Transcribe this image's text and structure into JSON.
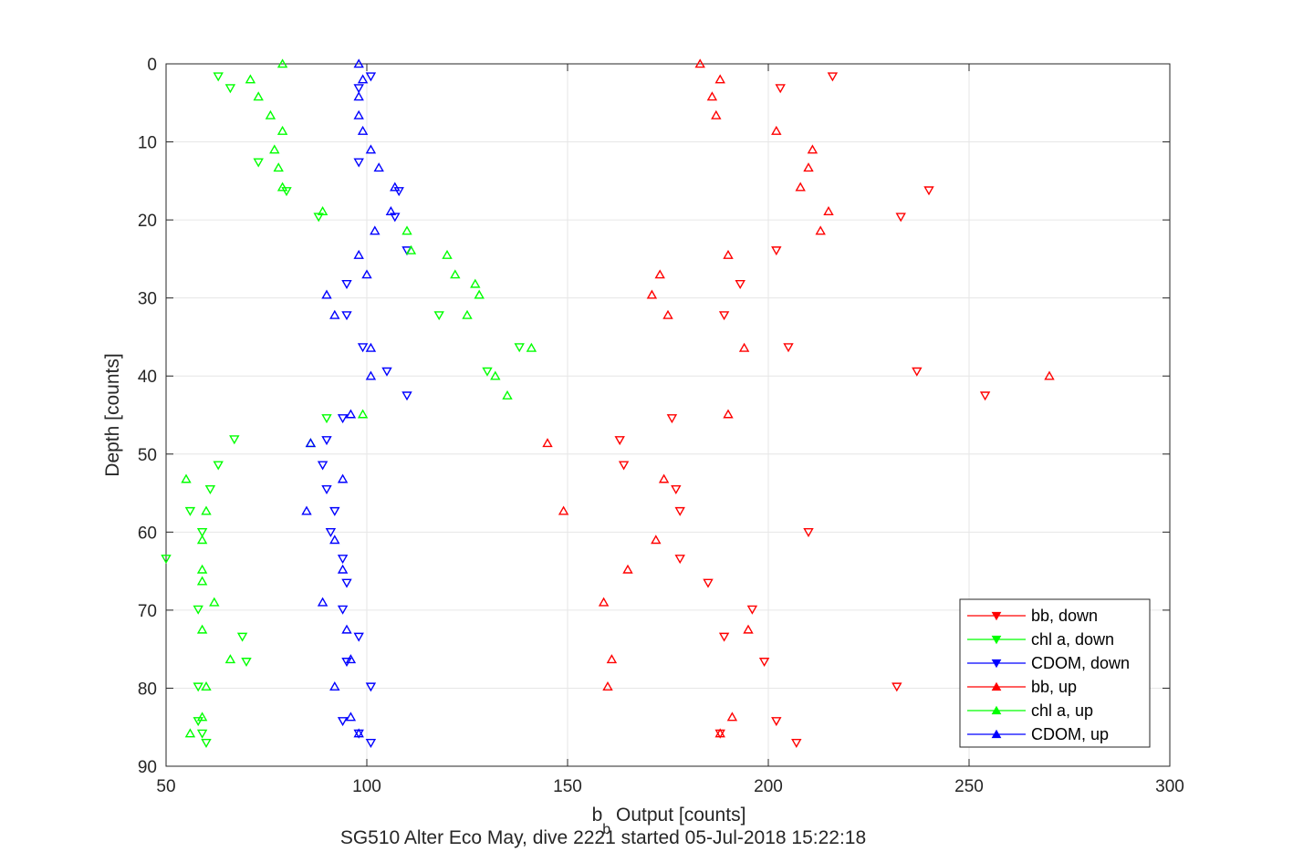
{
  "chart_data": {
    "type": "scatter",
    "xlabel_main": "b",
    "xlabel_sub": "b",
    "xlabel_rest": " Output [counts]",
    "ylabel": "Depth [counts]",
    "caption": "SG510 Alter Eco May, dive 2221 started 05-Jul-2018 15:22:18",
    "xlim": [
      50,
      300
    ],
    "ylim": [
      0,
      90
    ],
    "y_reversed": true,
    "grid": true,
    "x_ticks": [
      "50",
      "100",
      "150",
      "200",
      "250",
      "300"
    ],
    "y_ticks": [
      "0",
      "10",
      "20",
      "30",
      "40",
      "50",
      "60",
      "70",
      "80",
      "90"
    ],
    "legend_position": "bottom-right",
    "series": [
      {
        "name": "bb, down",
        "color": "#ff0000",
        "marker": "triangle-down",
        "points": [
          [
            216,
            1.6
          ],
          [
            203,
            3.1
          ],
          [
            240,
            16.2
          ],
          [
            233,
            19.6
          ],
          [
            202,
            23.9
          ],
          [
            193,
            28.2
          ],
          [
            189,
            32.2
          ],
          [
            205,
            36.3
          ],
          [
            237,
            39.4
          ],
          [
            254,
            42.5
          ],
          [
            176,
            45.4
          ],
          [
            163,
            48.2
          ],
          [
            164,
            51.4
          ],
          [
            177,
            54.5
          ],
          [
            178,
            57.3
          ],
          [
            210,
            60
          ],
          [
            178,
            63.4
          ],
          [
            185,
            66.5
          ],
          [
            196,
            69.9
          ],
          [
            189,
            73.4
          ],
          [
            199,
            76.6
          ],
          [
            232,
            79.8
          ],
          [
            202,
            84.2
          ],
          [
            188,
            85.8
          ],
          [
            207,
            87
          ]
        ]
      },
      {
        "name": "chl a, down",
        "color": "#00ff00",
        "marker": "triangle-down",
        "points": [
          [
            63,
            1.6
          ],
          [
            66,
            3.1
          ],
          [
            73,
            12.6
          ],
          [
            80,
            16.3
          ],
          [
            88,
            19.6
          ],
          [
            118,
            32.2
          ],
          [
            138,
            36.3
          ],
          [
            130,
            39.4
          ],
          [
            90,
            45.4
          ],
          [
            67,
            48.1
          ],
          [
            63,
            51.4
          ],
          [
            61,
            54.5
          ],
          [
            56,
            57.3
          ],
          [
            59,
            60
          ],
          [
            50,
            63.4
          ],
          [
            58,
            69.9
          ],
          [
            69,
            73.4
          ],
          [
            70,
            76.6
          ],
          [
            58,
            79.8
          ],
          [
            58,
            84.2
          ],
          [
            59,
            85.8
          ],
          [
            60,
            87
          ]
        ]
      },
      {
        "name": "CDOM, down",
        "color": "#0000ff",
        "marker": "triangle-down",
        "points": [
          [
            101,
            1.6
          ],
          [
            98,
            3.1
          ],
          [
            98,
            12.6
          ],
          [
            108,
            16.3
          ],
          [
            107,
            19.6
          ],
          [
            110,
            23.9
          ],
          [
            95,
            28.2
          ],
          [
            95,
            32.2
          ],
          [
            99,
            36.3
          ],
          [
            105,
            39.4
          ],
          [
            110,
            42.5
          ],
          [
            94,
            45.4
          ],
          [
            90,
            48.2
          ],
          [
            89,
            51.4
          ],
          [
            90,
            54.5
          ],
          [
            92,
            57.3
          ],
          [
            91,
            60
          ],
          [
            94,
            63.4
          ],
          [
            95,
            66.5
          ],
          [
            94,
            69.9
          ],
          [
            98,
            73.4
          ],
          [
            95,
            76.6
          ],
          [
            101,
            79.8
          ],
          [
            94,
            84.2
          ],
          [
            98,
            85.8
          ],
          [
            101,
            87
          ]
        ]
      },
      {
        "name": "bb, up",
        "color": "#ff0000",
        "marker": "triangle-up",
        "points": [
          [
            183,
            0
          ],
          [
            188,
            2
          ],
          [
            186,
            4.2
          ],
          [
            187,
            6.6
          ],
          [
            202,
            8.6
          ],
          [
            211,
            11
          ],
          [
            210,
            13.3
          ],
          [
            208,
            15.8
          ],
          [
            215,
            18.9
          ],
          [
            213,
            21.4
          ],
          [
            190,
            24.5
          ],
          [
            173,
            27
          ],
          [
            171,
            29.6
          ],
          [
            175,
            32.2
          ],
          [
            194,
            36.4
          ],
          [
            270,
            40
          ],
          [
            190,
            44.9
          ],
          [
            145,
            48.6
          ],
          [
            174,
            53.2
          ],
          [
            149,
            57.3
          ],
          [
            172,
            61
          ],
          [
            165,
            64.8
          ],
          [
            159,
            69
          ],
          [
            195,
            72.5
          ],
          [
            161,
            76.3
          ],
          [
            160,
            79.8
          ],
          [
            191,
            83.7
          ],
          [
            188,
            85.8
          ]
        ]
      },
      {
        "name": "chl a, up",
        "color": "#00ff00",
        "marker": "triangle-up",
        "points": [
          [
            79,
            0
          ],
          [
            71,
            2
          ],
          [
            73,
            4.2
          ],
          [
            76,
            6.6
          ],
          [
            79,
            8.6
          ],
          [
            77,
            11
          ],
          [
            78,
            13.3
          ],
          [
            79,
            15.8
          ],
          [
            89,
            18.9
          ],
          [
            110,
            21.4
          ],
          [
            111,
            23.9
          ],
          [
            120,
            24.5
          ],
          [
            122,
            27
          ],
          [
            127,
            28.2
          ],
          [
            128,
            29.6
          ],
          [
            125,
            32.2
          ],
          [
            141,
            36.4
          ],
          [
            132,
            40
          ],
          [
            135,
            42.5
          ],
          [
            99,
            44.9
          ],
          [
            86,
            48.6
          ],
          [
            55,
            53.2
          ],
          [
            60,
            57.3
          ],
          [
            59,
            61
          ],
          [
            59,
            64.8
          ],
          [
            59,
            66.3
          ],
          [
            62,
            69
          ],
          [
            59,
            72.5
          ],
          [
            66,
            76.3
          ],
          [
            60,
            79.8
          ],
          [
            59,
            83.7
          ],
          [
            56,
            85.8
          ]
        ]
      },
      {
        "name": "CDOM, up",
        "color": "#0000ff",
        "marker": "triangle-up",
        "points": [
          [
            98,
            0
          ],
          [
            99,
            2
          ],
          [
            98,
            4.2
          ],
          [
            98,
            6.6
          ],
          [
            99,
            8.6
          ],
          [
            101,
            11
          ],
          [
            103,
            13.3
          ],
          [
            107,
            15.8
          ],
          [
            106,
            18.9
          ],
          [
            102,
            21.4
          ],
          [
            98,
            24.5
          ],
          [
            100,
            27
          ],
          [
            90,
            29.6
          ],
          [
            92,
            32.2
          ],
          [
            101,
            36.4
          ],
          [
            101,
            40
          ],
          [
            96,
            44.9
          ],
          [
            86,
            48.6
          ],
          [
            94,
            53.2
          ],
          [
            85,
            57.3
          ],
          [
            92,
            61
          ],
          [
            94,
            64.8
          ],
          [
            89,
            69
          ],
          [
            95,
            72.5
          ],
          [
            96,
            76.3
          ],
          [
            92,
            79.8
          ],
          [
            96,
            83.7
          ],
          [
            98,
            85.8
          ]
        ]
      }
    ]
  }
}
